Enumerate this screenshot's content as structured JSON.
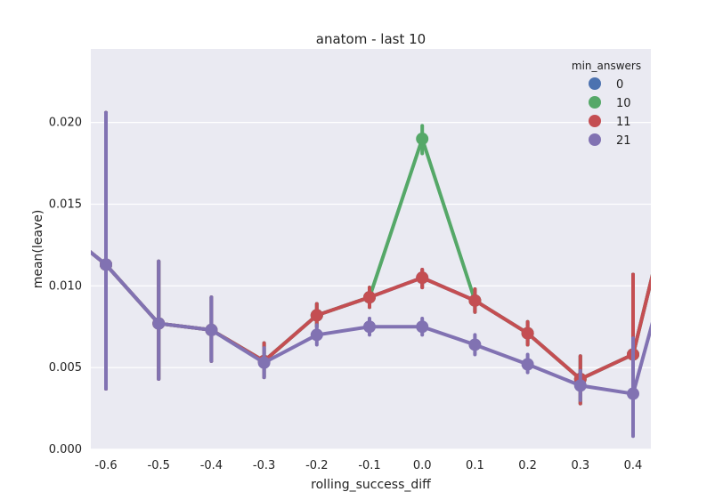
{
  "chart_data": {
    "type": "line",
    "title": "anatom - last 10",
    "xlabel": "rolling_success_diff",
    "ylabel": "mean(leave)",
    "categories": [
      "-0.6",
      "-0.5",
      "-0.4",
      "-0.3",
      "-0.2",
      "-0.1",
      "0.0",
      "0.1",
      "0.2",
      "0.3",
      "0.4"
    ],
    "ylim": [
      0,
      0.0245
    ],
    "yticks": [
      "0.000",
      "0.005",
      "0.010",
      "0.015",
      "0.020"
    ],
    "grid": true,
    "legend": {
      "title": "min_answers",
      "placement": "top-right"
    },
    "series": [
      {
        "name": "0",
        "color": "#4c72b0",
        "values": [
          0.0113,
          0.0077,
          0.0073,
          0.0054,
          0.0082,
          0.0093,
          0.0105,
          0.0091,
          0.0071,
          0.0043,
          0.0058
        ],
        "ci_low": [
          0.0037,
          0.0043,
          0.0054,
          0.0044,
          0.0075,
          0.0087,
          0.0099,
          0.0084,
          0.0064,
          0.0028,
          0.0032
        ],
        "ci_high": [
          0.0206,
          0.0115,
          0.0093,
          0.0065,
          0.0089,
          0.0099,
          0.011,
          0.0098,
          0.0078,
          0.0057,
          0.0107
        ],
        "edge_start": 0.0139,
        "edge_end": 0.019
      },
      {
        "name": "10",
        "color": "#55a868",
        "values": [
          0.0113,
          0.0077,
          0.0073,
          0.0054,
          0.0082,
          0.0093,
          0.019,
          0.0091,
          0.0071,
          0.0043,
          0.0058
        ],
        "ci_low": [
          0.0037,
          0.0043,
          0.0054,
          0.0044,
          0.0075,
          0.0087,
          0.0181,
          0.0084,
          0.0064,
          0.0028,
          0.0032
        ],
        "ci_high": [
          0.0206,
          0.0115,
          0.0093,
          0.0065,
          0.0089,
          0.0099,
          0.0198,
          0.0098,
          0.0078,
          0.0057,
          0.0107
        ],
        "edge_start": 0.0139,
        "edge_end": 0.019
      },
      {
        "name": "11",
        "color": "#c44e52",
        "values": [
          0.0113,
          0.0077,
          0.0073,
          0.0054,
          0.0082,
          0.0093,
          0.0105,
          0.0091,
          0.0071,
          0.0043,
          0.0058
        ],
        "ci_low": [
          0.0037,
          0.0043,
          0.0054,
          0.0044,
          0.0075,
          0.0087,
          0.0099,
          0.0084,
          0.0064,
          0.0028,
          0.0032
        ],
        "ci_high": [
          0.0206,
          0.0115,
          0.0093,
          0.0065,
          0.0089,
          0.0099,
          0.011,
          0.0098,
          0.0078,
          0.0057,
          0.0107
        ],
        "edge_start": 0.0139,
        "edge_end": 0.019
      },
      {
        "name": "21",
        "color": "#8172b2",
        "values": [
          0.0113,
          0.0077,
          0.0073,
          0.0053,
          0.007,
          0.0075,
          0.0075,
          0.0064,
          0.0052,
          0.0039,
          0.0034
        ],
        "ci_low": [
          0.0037,
          0.0043,
          0.0054,
          0.0044,
          0.0064,
          0.007,
          0.007,
          0.0058,
          0.0047,
          0.003,
          0.0008
        ],
        "ci_high": [
          0.0206,
          0.0115,
          0.0093,
          0.0062,
          0.0076,
          0.008,
          0.008,
          0.007,
          0.0058,
          0.0048,
          0.0068
        ],
        "edge_start": 0.0139,
        "edge_end": 0.0152
      }
    ]
  }
}
